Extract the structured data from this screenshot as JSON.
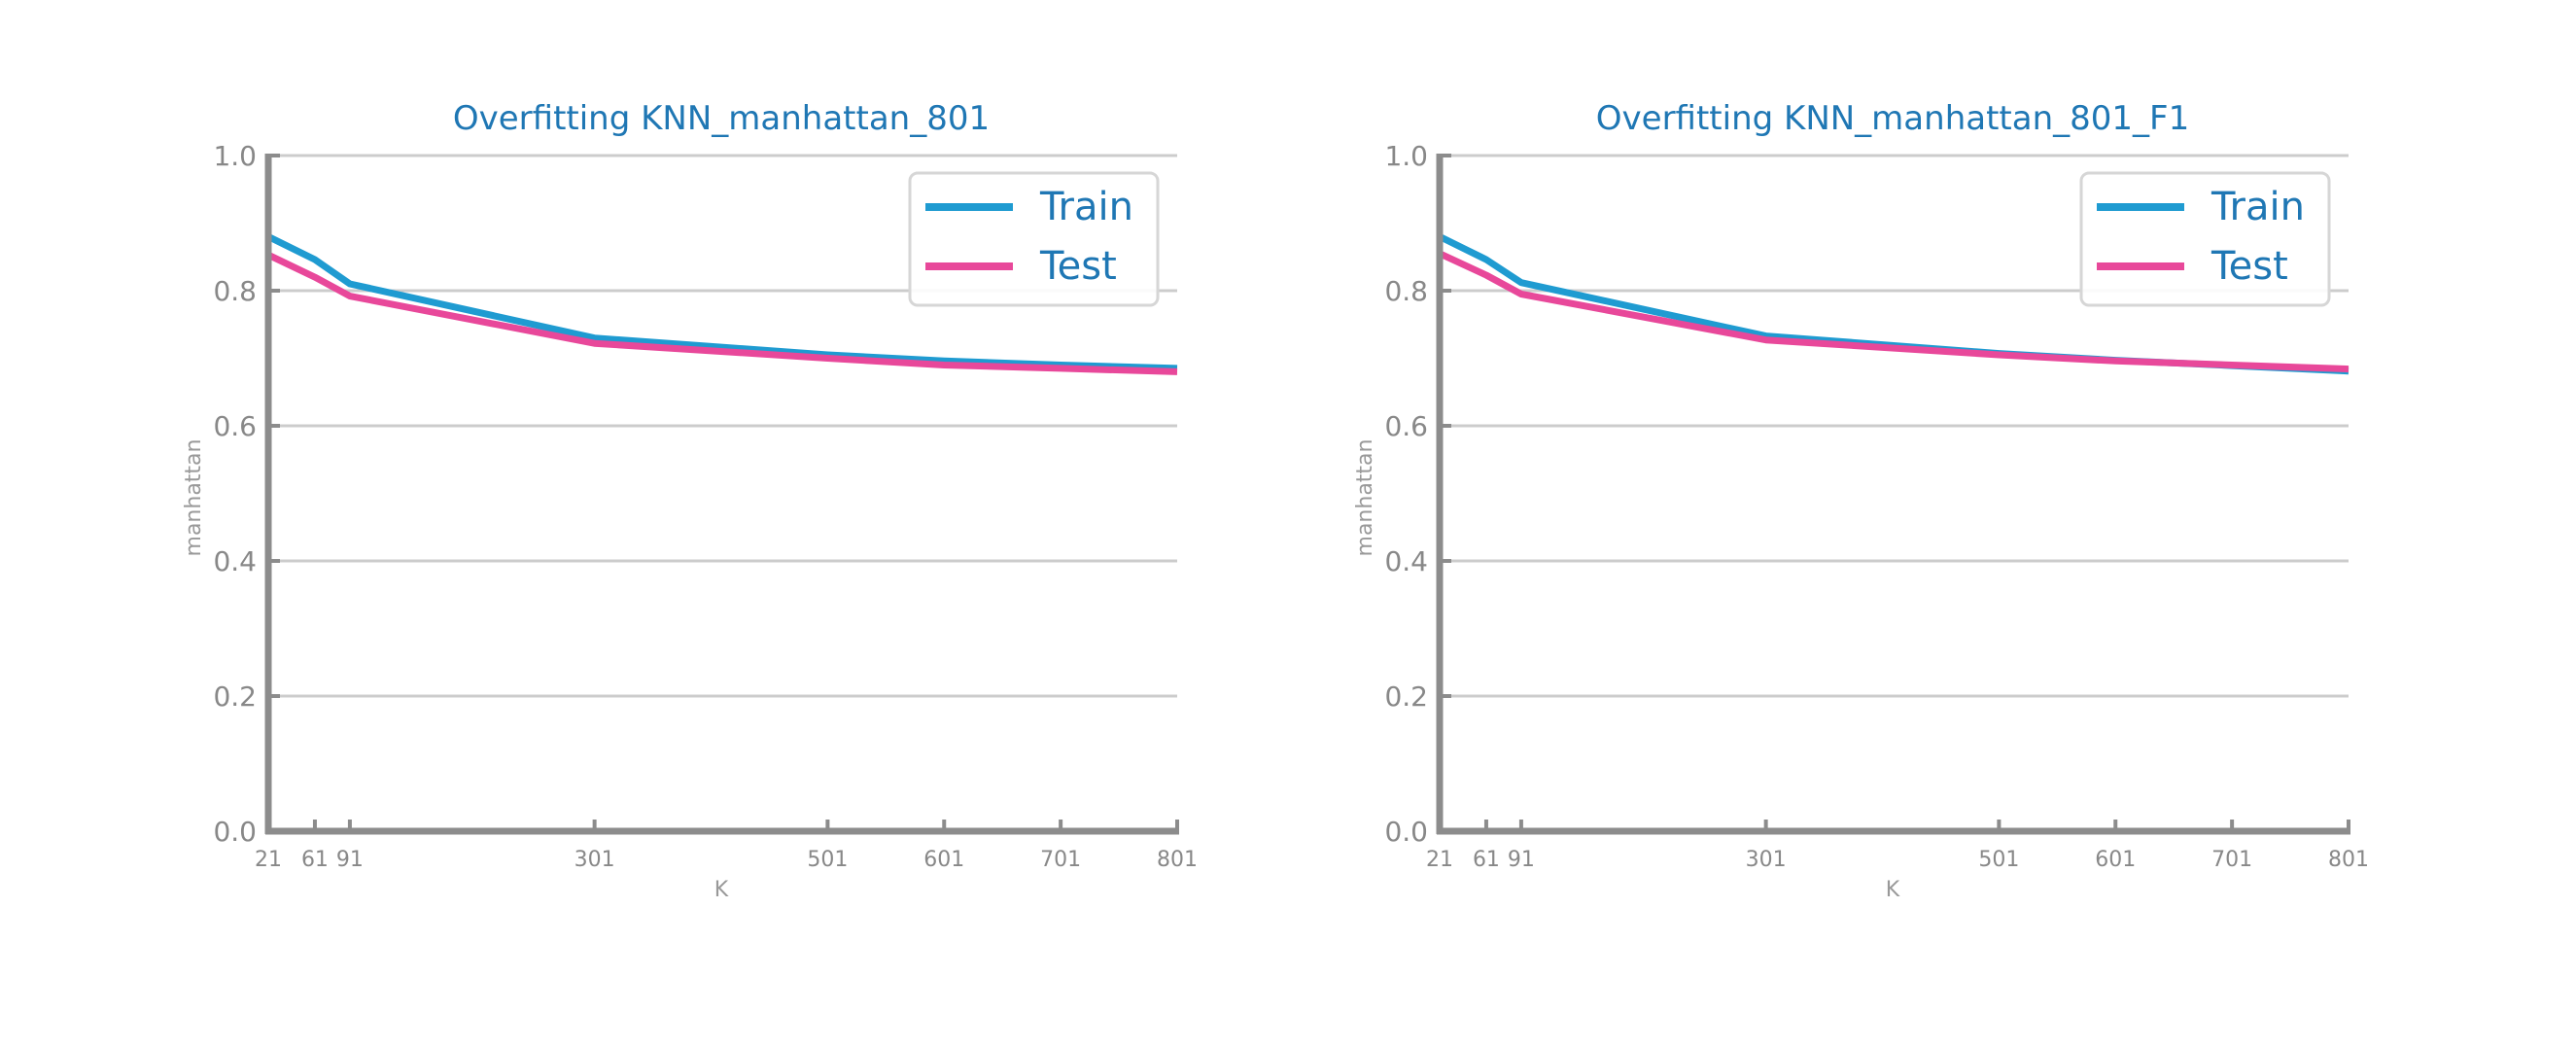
{
  "chart_data": [
    {
      "type": "line",
      "title": "Overfitting KNN_manhattan_801",
      "xlabel": "K",
      "ylabel": "manhattan",
      "x": [
        21,
        61,
        91,
        301,
        501,
        601,
        701,
        801
      ],
      "x_tick_labels": [
        "21",
        "61",
        "91",
        "301",
        "501",
        "601",
        "701",
        "801"
      ],
      "xlim": [
        21,
        801
      ],
      "ylim": [
        0.0,
        1.0
      ],
      "y_ticks": [
        0.0,
        0.2,
        0.4,
        0.6,
        0.8,
        1.0
      ],
      "y_tick_labels": [
        "0.0",
        "0.2",
        "0.4",
        "0.6",
        "0.8",
        "1.0"
      ],
      "grid": "horizontal",
      "legend_position": "top-right",
      "series": [
        {
          "name": "Train",
          "color": "#1f9bd1",
          "values": [
            0.88,
            0.846,
            0.81,
            0.73,
            0.705,
            0.696,
            0.69,
            0.685
          ]
        },
        {
          "name": "Test",
          "color": "#e8489a",
          "values": [
            0.853,
            0.82,
            0.792,
            0.722,
            0.7,
            0.69,
            0.685,
            0.68
          ]
        }
      ]
    },
    {
      "type": "line",
      "title": "Overfitting KNN_manhattan_801_F1",
      "xlabel": "K",
      "ylabel": "manhattan",
      "x": [
        21,
        61,
        91,
        301,
        501,
        601,
        701,
        801
      ],
      "x_tick_labels": [
        "21",
        "61",
        "91",
        "301",
        "501",
        "601",
        "701",
        "801"
      ],
      "xlim": [
        21,
        801
      ],
      "ylim": [
        0.0,
        1.0
      ],
      "y_ticks": [
        0.0,
        0.2,
        0.4,
        0.6,
        0.8,
        1.0
      ],
      "y_tick_labels": [
        "0.0",
        "0.2",
        "0.4",
        "0.6",
        "0.8",
        "1.0"
      ],
      "grid": "horizontal",
      "legend_position": "top-right",
      "series": [
        {
          "name": "Train",
          "color": "#1f9bd1",
          "values": [
            0.88,
            0.846,
            0.812,
            0.733,
            0.707,
            0.697,
            0.689,
            0.681
          ]
        },
        {
          "name": "Test",
          "color": "#e8489a",
          "values": [
            0.855,
            0.823,
            0.795,
            0.727,
            0.705,
            0.696,
            0.69,
            0.684
          ]
        }
      ]
    }
  ],
  "style": {
    "title_color": "#1f77b4",
    "axis_color": "#8c8c8c",
    "tick_label_color": "#888888",
    "grid_color": "#cccccc",
    "legend_text_color": "#1f77b4"
  }
}
